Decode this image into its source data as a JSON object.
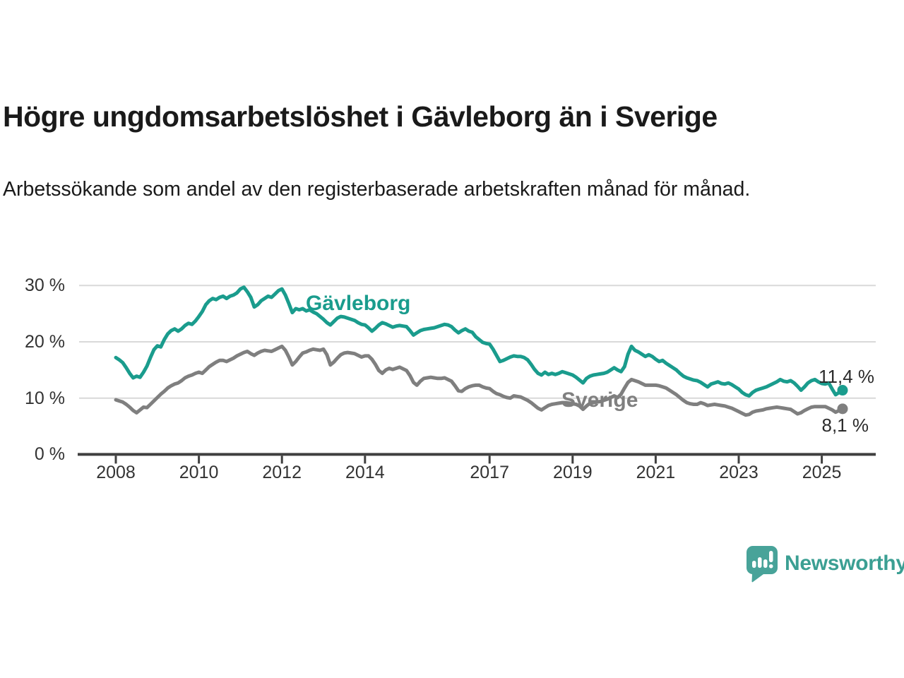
{
  "header": {
    "title": "Högre ungdomsarbetslöshet i Gävleborg än i Sverige",
    "subtitle": "Arbetssökande som andel av den registerbaserade arbetskraften månad för månad."
  },
  "chart_data": {
    "type": "line",
    "title": "Högre ungdomsarbetslöshet i Gävleborg än i Sverige",
    "xlabel": "",
    "ylabel": "",
    "unit": "%",
    "grid": "horizontal-only",
    "ylim": [
      0,
      32
    ],
    "xlim": [
      2008.0,
      2025.58
    ],
    "yticks": [
      {
        "value": 0,
        "label": "0 %"
      },
      {
        "value": 10,
        "label": "10 %"
      },
      {
        "value": 20,
        "label": "20 %"
      },
      {
        "value": 30,
        "label": "30 %"
      }
    ],
    "xticks": [
      {
        "value": 2008,
        "label": "2008"
      },
      {
        "value": 2010,
        "label": "2010"
      },
      {
        "value": 2012,
        "label": "2012"
      },
      {
        "value": 2014,
        "label": "2014"
      },
      {
        "value": 2017,
        "label": "2017"
      },
      {
        "value": 2019,
        "label": "2019"
      },
      {
        "value": 2021,
        "label": "2021"
      },
      {
        "value": 2023,
        "label": "2023"
      },
      {
        "value": 2025,
        "label": "2025"
      }
    ],
    "x_start": 2008.0,
    "x_step_years": 0.0833333,
    "series": [
      {
        "name": "Gävleborg",
        "color": "#1a9c8d",
        "end_label": "11,4 %",
        "end_value": 11.4,
        "values": [
          17.2,
          16.8,
          16.3,
          15.4,
          14.4,
          13.6,
          13.9,
          13.7,
          14.6,
          15.7,
          17.2,
          18.6,
          19.3,
          19.1,
          20.4,
          21.4,
          22.0,
          22.3,
          21.9,
          22.3,
          22.9,
          23.3,
          23.1,
          23.7,
          24.5,
          25.4,
          26.6,
          27.3,
          27.7,
          27.5,
          27.9,
          28.1,
          27.7,
          28.1,
          28.3,
          28.7,
          29.4,
          29.7,
          28.9,
          27.9,
          26.2,
          26.6,
          27.3,
          27.7,
          28.1,
          27.9,
          28.5,
          29.1,
          29.4,
          28.3,
          26.8,
          25.2,
          25.9,
          25.7,
          25.9,
          25.5,
          25.7,
          25.3,
          25.0,
          24.5,
          24.0,
          23.4,
          23.0,
          23.6,
          24.2,
          24.5,
          24.4,
          24.2,
          24.0,
          23.8,
          23.4,
          23.1,
          23.0,
          22.5,
          21.9,
          22.4,
          23.0,
          23.4,
          23.2,
          22.9,
          22.6,
          22.8,
          22.9,
          22.8,
          22.7,
          22.0,
          21.2,
          21.6,
          22.0,
          22.2,
          22.3,
          22.4,
          22.5,
          22.7,
          22.9,
          23.1,
          23.0,
          22.7,
          22.1,
          21.6,
          22.0,
          22.3,
          21.9,
          21.7,
          20.9,
          20.4,
          19.9,
          19.7,
          19.6,
          18.7,
          17.6,
          16.5,
          16.7,
          17.0,
          17.3,
          17.5,
          17.4,
          17.4,
          17.2,
          16.8,
          16.0,
          15.1,
          14.4,
          14.1,
          14.6,
          14.2,
          14.4,
          14.2,
          14.4,
          14.7,
          14.5,
          14.3,
          14.1,
          13.7,
          13.2,
          12.7,
          13.5,
          13.9,
          14.1,
          14.2,
          14.3,
          14.4,
          14.6,
          15.0,
          15.4,
          15.0,
          14.7,
          15.6,
          17.8,
          19.2,
          18.5,
          18.2,
          17.8,
          17.4,
          17.7,
          17.4,
          16.9,
          16.5,
          16.7,
          16.2,
          15.8,
          15.4,
          15.0,
          14.4,
          13.9,
          13.6,
          13.4,
          13.2,
          13.1,
          12.8,
          12.4,
          12.0,
          12.5,
          12.7,
          12.9,
          12.6,
          12.5,
          12.7,
          12.4,
          12.0,
          11.6,
          11.0,
          10.6,
          10.4,
          11.0,
          11.4,
          11.6,
          11.8,
          12.0,
          12.3,
          12.6,
          12.9,
          13.3,
          13.0,
          12.9,
          13.1,
          12.7,
          12.1,
          11.4,
          12.0,
          12.7,
          13.1,
          13.3,
          12.9,
          12.6,
          12.5,
          12.7,
          11.6,
          10.6,
          11.0,
          11.4
        ]
      },
      {
        "name": "Sverige",
        "color": "#7f7f7f",
        "end_label": "8,1 %",
        "end_value": 8.1,
        "values": [
          9.7,
          9.5,
          9.3,
          8.9,
          8.4,
          7.8,
          7.4,
          7.9,
          8.4,
          8.3,
          8.9,
          9.5,
          10.1,
          10.7,
          11.2,
          11.8,
          12.2,
          12.5,
          12.7,
          13.1,
          13.6,
          13.9,
          14.1,
          14.4,
          14.6,
          14.4,
          15.0,
          15.6,
          16.0,
          16.4,
          16.7,
          16.7,
          16.5,
          16.8,
          17.1,
          17.5,
          17.8,
          18.1,
          18.3,
          17.9,
          17.6,
          18.0,
          18.3,
          18.5,
          18.4,
          18.3,
          18.6,
          18.9,
          19.2,
          18.5,
          17.3,
          15.9,
          16.5,
          17.3,
          18.0,
          18.2,
          18.5,
          18.7,
          18.6,
          18.5,
          18.7,
          17.7,
          15.9,
          16.4,
          17.1,
          17.7,
          18.0,
          18.1,
          18.0,
          17.9,
          17.6,
          17.3,
          17.5,
          17.5,
          16.9,
          16.0,
          14.9,
          14.4,
          15.0,
          15.3,
          15.1,
          15.3,
          15.5,
          15.2,
          14.9,
          14.0,
          12.8,
          12.3,
          13.0,
          13.5,
          13.6,
          13.7,
          13.6,
          13.5,
          13.5,
          13.6,
          13.3,
          13.0,
          12.2,
          11.3,
          11.2,
          11.7,
          12.0,
          12.2,
          12.3,
          12.3,
          12.0,
          11.8,
          11.7,
          11.2,
          10.8,
          10.6,
          10.3,
          10.1,
          10.0,
          10.4,
          10.3,
          10.2,
          9.9,
          9.6,
          9.2,
          8.7,
          8.2,
          7.9,
          8.3,
          8.7,
          8.9,
          9.0,
          9.1,
          9.2,
          9.2,
          9.1,
          9.0,
          8.9,
          8.6,
          8.0,
          8.6,
          9.1,
          9.2,
          9.3,
          9.4,
          9.6,
          9.8,
          10.1,
          10.4,
          10.1,
          10.7,
          11.8,
          12.8,
          13.3,
          13.1,
          12.9,
          12.6,
          12.3,
          12.3,
          12.3,
          12.3,
          12.2,
          12.0,
          11.8,
          11.4,
          11.0,
          10.6,
          10.1,
          9.6,
          9.2,
          9.0,
          8.9,
          8.9,
          9.2,
          9.0,
          8.7,
          8.8,
          8.9,
          8.8,
          8.7,
          8.6,
          8.4,
          8.2,
          7.9,
          7.6,
          7.3,
          7.0,
          7.1,
          7.5,
          7.7,
          7.8,
          7.9,
          8.1,
          8.2,
          8.3,
          8.4,
          8.3,
          8.2,
          8.1,
          8.0,
          7.6,
          7.2,
          7.4,
          7.8,
          8.1,
          8.4,
          8.5,
          8.5,
          8.5,
          8.5,
          8.2,
          7.9,
          7.5,
          7.8,
          8.1
        ]
      }
    ],
    "legend_position": "inline-labels-on-lines",
    "colors": {
      "gridline": "#d9d9d9",
      "axis": "#404040",
      "tick_text": "#333333",
      "value_label_text": "#2b2b2b"
    }
  },
  "footer": {
    "brand": "Newsworthy",
    "brand_color": "#3b9f93",
    "logo_icon": "bar-chart-speech-bubble-icon"
  }
}
